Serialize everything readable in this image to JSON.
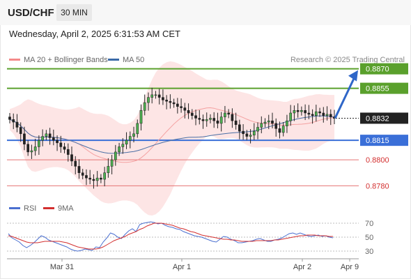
{
  "header": {
    "symbol": "USD/CHF",
    "timeframe": "30 MIN"
  },
  "timestamp": "Wednesday, April 2, 2025 6:31:53 AM CET",
  "legend": {
    "ma20_label": "MA 20 + Bollinger Bands",
    "ma50_label": "MA 50",
    "credit": "Research © 2025 Trading Central"
  },
  "rsi_legend": {
    "rsi_label": "RSI",
    "ma9_label": "9MA"
  },
  "colors": {
    "resistance": "#5aa02c",
    "support": "#3a6fd8",
    "lower_support": "#e57373",
    "current": "#222222",
    "arrow": "#2f66c8",
    "candle_up": "#4caf50",
    "candle_down": "#222222",
    "ma20": "#f4a0a0",
    "ma50": "#4a6fa5",
    "bollinger": "#fde0e0",
    "rsi": "#4a6fd0",
    "rsi_ma": "#d32f2f"
  },
  "chart_data": [
    {
      "type": "candlestick",
      "title": "USD/CHF",
      "ylim": [
        0.877,
        0.888
      ],
      "x_ticks": [
        "Mar 31",
        "Apr 1",
        "Apr 2",
        "Apr 9"
      ],
      "closes": [
        0.8831,
        0.8829,
        0.8825,
        0.882,
        0.8812,
        0.8806,
        0.8807,
        0.881,
        0.8815,
        0.8818,
        0.882,
        0.8817,
        0.8815,
        0.8813,
        0.881,
        0.8808,
        0.8804,
        0.8799,
        0.8795,
        0.879,
        0.8788,
        0.8786,
        0.8785,
        0.8784,
        0.8786,
        0.8785,
        0.879,
        0.8795,
        0.88,
        0.8806,
        0.881,
        0.8812,
        0.8815,
        0.8818,
        0.882,
        0.8828,
        0.8838,
        0.8844,
        0.8848,
        0.885,
        0.885,
        0.8848,
        0.8846,
        0.8845,
        0.8844,
        0.8843,
        0.8841,
        0.884,
        0.8838,
        0.8836,
        0.8834,
        0.8832,
        0.8831,
        0.883,
        0.8831,
        0.8832,
        0.883,
        0.8828,
        0.8833,
        0.8836,
        0.8835,
        0.883,
        0.8827,
        0.8822,
        0.882,
        0.8818,
        0.8819,
        0.8822,
        0.8825,
        0.8828,
        0.8829,
        0.883,
        0.8828,
        0.8824,
        0.8821,
        0.8826,
        0.883,
        0.8836,
        0.8838,
        0.8837,
        0.8838,
        0.8836,
        0.8835,
        0.8834,
        0.8837,
        0.8836,
        0.8834,
        0.8835,
        0.8833,
        0.8832
      ],
      "price_levels": [
        {
          "value": 0.887,
          "label": "0.8870",
          "role": "resistance"
        },
        {
          "value": 0.8855,
          "label": "0.8855",
          "role": "resistance"
        },
        {
          "value": 0.8832,
          "label": "0.8832",
          "role": "current"
        },
        {
          "value": 0.8815,
          "label": "0.8815",
          "role": "support"
        },
        {
          "value": 0.88,
          "label": "0.8800",
          "role": "lower_support"
        },
        {
          "value": 0.878,
          "label": "0.8780",
          "role": "lower_support"
        }
      ],
      "series": [
        {
          "name": "MA 20 + Bollinger Bands"
        },
        {
          "name": "MA 50"
        }
      ],
      "projection": {
        "from": 0.8832,
        "to": 0.887
      }
    },
    {
      "type": "line",
      "title": "RSI",
      "ylim": [
        20,
        80
      ],
      "y_ticks": [
        70,
        50,
        30
      ],
      "series": [
        {
          "name": "RSI",
          "values": [
            55,
            49,
            46,
            43,
            38,
            35,
            38,
            42,
            47,
            52,
            50,
            46,
            44,
            42,
            40,
            38,
            36,
            33,
            31,
            30,
            31,
            33,
            32,
            31,
            36,
            35,
            43,
            49,
            56,
            54,
            50,
            48,
            54,
            59,
            62,
            58,
            68,
            70,
            71,
            72,
            71,
            69,
            70,
            67,
            65,
            64,
            62,
            61,
            58,
            56,
            54,
            52,
            51,
            50,
            48,
            46,
            44,
            43,
            47,
            51,
            50,
            47,
            45,
            42,
            42,
            43,
            44,
            45,
            47,
            48,
            46,
            44,
            44,
            46,
            47,
            49,
            52,
            55,
            56,
            54,
            56,
            54,
            52,
            51,
            52,
            53,
            51,
            52,
            50,
            49
          ]
        },
        {
          "name": "9MA",
          "values": [
            52,
            51,
            49,
            47,
            45,
            43,
            42,
            42,
            42,
            43,
            44,
            44,
            44,
            44,
            44,
            43,
            42,
            40,
            38,
            36,
            35,
            34,
            33,
            33,
            33,
            34,
            36,
            39,
            42,
            45,
            47,
            49,
            51,
            54,
            56,
            58,
            61,
            63,
            66,
            68,
            70,
            70,
            70,
            69,
            68,
            67,
            65,
            63,
            62,
            60,
            58,
            57,
            55,
            53,
            52,
            51,
            50,
            49,
            48,
            47,
            47,
            46,
            46,
            45,
            44,
            44,
            44,
            44,
            45,
            45,
            45,
            45,
            45,
            46,
            46,
            47,
            48,
            49,
            50,
            51,
            52,
            52,
            53,
            53,
            53,
            52,
            52,
            52,
            51,
            51
          ]
        }
      ]
    }
  ]
}
